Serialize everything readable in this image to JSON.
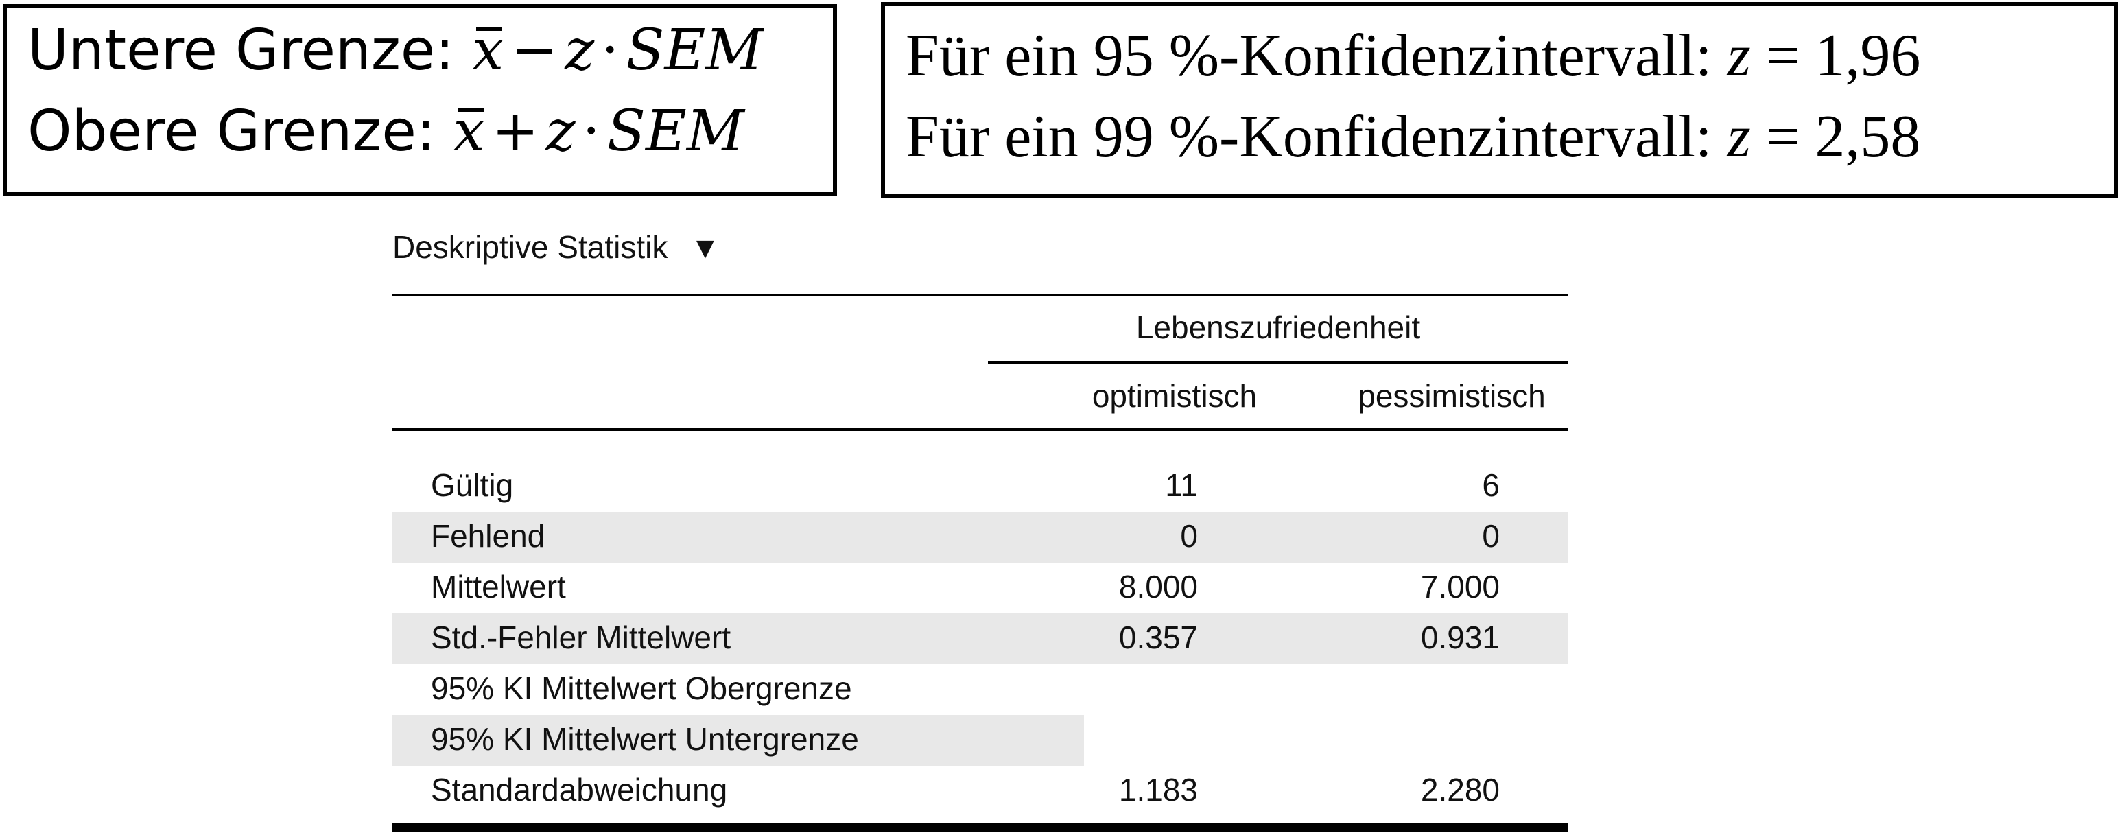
{
  "formulas": {
    "lower_label": "Untere Grenze:",
    "upper_label": "Obere Grenze:",
    "xbar": "x",
    "minus": "−",
    "plus": "+",
    "z": "z",
    "dot": "·",
    "sem": "SEM"
  },
  "z_values": {
    "line_95_text": "Für ein 95 %-Konfidenzintervall:",
    "line_95_value": "= 1,96",
    "line_99_text": "Für ein 99 %-Konfidenzintervall:",
    "line_99_value": "= 2,58",
    "z": "z"
  },
  "section": {
    "title": "Deskriptive Statistik",
    "toggle": "▼"
  },
  "table": {
    "group_header": "Lebenszufriedenheit",
    "columns": [
      "optimistisch",
      "pessimistisch"
    ],
    "rows": [
      {
        "label": "Gültig",
        "optimistisch": "11",
        "pessimistisch": "6"
      },
      {
        "label": "Fehlend",
        "optimistisch": "0",
        "pessimistisch": "0"
      },
      {
        "label": "Mittelwert",
        "optimistisch": "8.000",
        "pessimistisch": "7.000"
      },
      {
        "label": "Std.-Fehler Mittelwert",
        "optimistisch": "0.357",
        "pessimistisch": "0.931"
      },
      {
        "label": "95% KI Mittelwert Obergrenze",
        "optimistisch": "",
        "pessimistisch": ""
      },
      {
        "label": "95% KI Mittelwert Untergrenze",
        "optimistisch": "",
        "pessimistisch": ""
      },
      {
        "label": "Standardabweichung",
        "optimistisch": "1.183",
        "pessimistisch": "2.280"
      }
    ]
  }
}
